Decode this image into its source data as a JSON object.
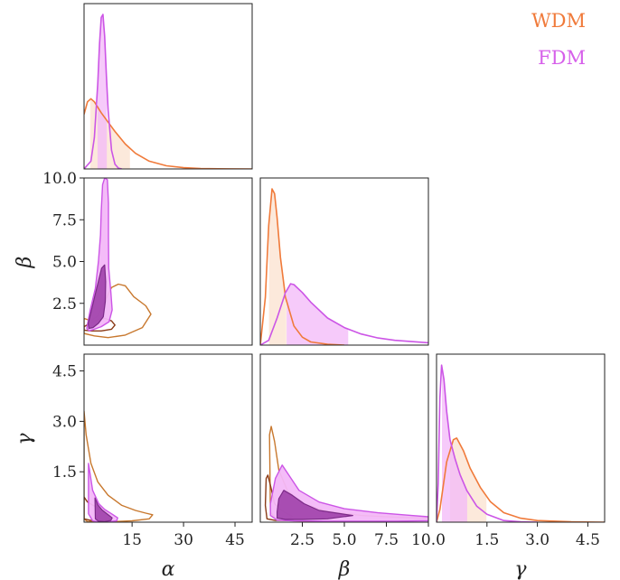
{
  "chart_data": {
    "type": "corner",
    "parameters": [
      "α",
      "β",
      "γ"
    ],
    "legend": [
      {
        "name": "WDM",
        "color": "#f07a3a",
        "position": "top-right"
      },
      {
        "name": "FDM",
        "color": "#d660ea",
        "position": "top-right"
      }
    ],
    "colors": {
      "wdm_line": "#f07a3a",
      "wdm_fill": "#fbe2cf",
      "fdm_line": "#cc55e6",
      "fdm_fill": "#f3b8f8",
      "fdm_dark": "#9a3aa6",
      "wdm_contour_outer": "#c8782e",
      "wdm_contour_inner": "#8a3a16"
    },
    "axes": {
      "alpha": {
        "label": "α",
        "range": [
          1,
          50
        ],
        "ticks": [
          15,
          30,
          45
        ],
        "tick_labels": [
          "15",
          "30",
          "45"
        ]
      },
      "beta": {
        "label": "β",
        "range": [
          0,
          10
        ],
        "ticks": [
          2.5,
          5.0,
          7.5,
          10.0
        ],
        "tick_labels": [
          "2.5",
          "5.0",
          "7.5",
          "10.0"
        ]
      },
      "gamma": {
        "label": "γ",
        "range": [
          0,
          5
        ],
        "ticks": [
          1.5,
          3.0,
          4.5
        ],
        "tick_labels": [
          "1.5",
          "3.0",
          "4.5"
        ]
      }
    },
    "marginals": {
      "alpha": {
        "WDM": {
          "x": [
            1,
            2,
            3,
            4,
            6,
            8,
            10,
            13,
            16,
            20,
            25,
            30,
            35,
            40,
            50
          ],
          "density": [
            0.35,
            0.43,
            0.45,
            0.43,
            0.36,
            0.3,
            0.24,
            0.16,
            0.1,
            0.05,
            0.02,
            0.008,
            0.003,
            0.001,
            0.0
          ]
        },
        "FDM": {
          "x": [
            1,
            3,
            4,
            5,
            5.5,
            6,
            6.5,
            7,
            7.5,
            8,
            9,
            10,
            11,
            12
          ],
          "density": [
            0.0,
            0.05,
            0.2,
            0.55,
            0.8,
            0.97,
            0.99,
            0.85,
            0.6,
            0.38,
            0.12,
            0.03,
            0.005,
            0.0
          ]
        }
      },
      "beta": {
        "WDM": {
          "x": [
            0,
            0.3,
            0.5,
            0.7,
            0.85,
            1.0,
            1.2,
            1.5,
            2.0,
            2.5,
            3.0,
            4.0,
            5.0
          ],
          "density": [
            0.0,
            0.3,
            0.75,
            0.98,
            0.95,
            0.8,
            0.55,
            0.3,
            0.12,
            0.05,
            0.02,
            0.005,
            0.0
          ]
        },
        "FDM": {
          "x": [
            0,
            0.5,
            1.0,
            1.5,
            1.8,
            2.0,
            2.5,
            3.0,
            4.0,
            5.0,
            6.0,
            7.0,
            8.0,
            10.0
          ],
          "density": [
            0.0,
            0.03,
            0.17,
            0.33,
            0.385,
            0.38,
            0.33,
            0.27,
            0.17,
            0.11,
            0.07,
            0.045,
            0.03,
            0.015
          ]
        }
      },
      "gamma": {
        "WDM": {
          "x": [
            0,
            0.1,
            0.3,
            0.5,
            0.6,
            0.8,
            1.0,
            1.3,
            1.6,
            2.0,
            2.5,
            3.0,
            4.0,
            5.0
          ],
          "density": [
            0.0,
            0.08,
            0.38,
            0.52,
            0.53,
            0.45,
            0.34,
            0.22,
            0.13,
            0.06,
            0.025,
            0.01,
            0.002,
            0.0
          ]
        },
        "FDM": {
          "x": [
            0,
            0.05,
            0.1,
            0.15,
            0.22,
            0.3,
            0.4,
            0.55,
            0.7,
            0.9,
            1.2,
            1.5,
            2.0,
            2.5,
            3.0
          ],
          "density": [
            0.0,
            0.25,
            0.78,
            0.99,
            0.9,
            0.7,
            0.52,
            0.4,
            0.3,
            0.2,
            0.1,
            0.05,
            0.01,
            0.003,
            0.0
          ]
        }
      }
    },
    "contours": {
      "alpha_beta": {
        "WDM_outer": [
          [
            1,
            1.6
          ],
          [
            3,
            1.45
          ],
          [
            5,
            1.75
          ],
          [
            7,
            2.6
          ],
          [
            9,
            3.45
          ],
          [
            11,
            3.65
          ],
          [
            13,
            3.55
          ],
          [
            15.5,
            2.9
          ],
          [
            19,
            2.35
          ],
          [
            20.5,
            1.85
          ],
          [
            18,
            1.05
          ],
          [
            13,
            0.6
          ],
          [
            8,
            0.45
          ],
          [
            4,
            0.55
          ],
          [
            1,
            0.7
          ]
        ],
        "WDM_inner": [
          [
            1,
            1.1
          ],
          [
            4,
            1.45
          ],
          [
            7,
            1.6
          ],
          [
            9,
            1.45
          ],
          [
            10,
            1.2
          ],
          [
            9,
            0.95
          ],
          [
            6,
            0.85
          ],
          [
            3,
            0.85
          ],
          [
            1,
            0.9
          ]
        ],
        "FDM_outer": [
          [
            1.8,
            1.0
          ],
          [
            2.8,
            2.1
          ],
          [
            4.3,
            3.4
          ],
          [
            5.2,
            5.0
          ],
          [
            5.8,
            6.6
          ],
          [
            6.0,
            8.0
          ],
          [
            6.4,
            9.6
          ],
          [
            7.0,
            10.0
          ],
          [
            7.8,
            9.9
          ],
          [
            8.1,
            8.5
          ],
          [
            8.1,
            6.5
          ],
          [
            8.2,
            4.6
          ],
          [
            8.8,
            3.2
          ],
          [
            9.2,
            2.1
          ],
          [
            8.3,
            1.4
          ],
          [
            6.0,
            1.1
          ],
          [
            4.0,
            0.95
          ],
          [
            2.5,
            0.85
          ],
          [
            1.8,
            1.0
          ]
        ],
        "FDM_inner": [
          [
            2.2,
            1.3
          ],
          [
            3.4,
            2.3
          ],
          [
            4.8,
            3.5
          ],
          [
            6.1,
            4.6
          ],
          [
            7.0,
            4.8
          ],
          [
            7.3,
            3.8
          ],
          [
            7.2,
            2.6
          ],
          [
            6.6,
            1.7
          ],
          [
            5.2,
            1.3
          ],
          [
            3.6,
            1.05
          ],
          [
            2.4,
            1.0
          ],
          [
            2.2,
            1.3
          ]
        ]
      },
      "alpha_gamma": {
        "WDM_outer": [
          [
            1,
            3.3
          ],
          [
            1.6,
            2.6
          ],
          [
            3,
            1.75
          ],
          [
            5,
            1.2
          ],
          [
            8,
            0.8
          ],
          [
            12,
            0.5
          ],
          [
            16,
            0.35
          ],
          [
            19,
            0.27
          ],
          [
            21,
            0.22
          ],
          [
            20,
            0.1
          ],
          [
            15,
            0.04
          ],
          [
            10,
            0.02
          ],
          [
            5,
            0.02
          ],
          [
            2,
            0.02
          ],
          [
            1,
            0.1
          ]
        ],
        "WDM_inner": [
          [
            1,
            0.75
          ],
          [
            2,
            0.6
          ],
          [
            4,
            0.48
          ],
          [
            6,
            0.38
          ],
          [
            8,
            0.27
          ],
          [
            9,
            0.12
          ],
          [
            6,
            0.05
          ],
          [
            3,
            0.05
          ],
          [
            1,
            0.1
          ]
        ],
        "FDM_outer": [
          [
            2.3,
            1.75
          ],
          [
            3.5,
            0.95
          ],
          [
            5.3,
            0.55
          ],
          [
            7.0,
            0.38
          ],
          [
            9.0,
            0.25
          ],
          [
            10.8,
            0.13
          ],
          [
            10.5,
            0.04
          ],
          [
            8.0,
            0.01
          ],
          [
            5.0,
            0.01
          ],
          [
            3.5,
            0.04
          ],
          [
            2.3,
            0.25
          ],
          [
            2.3,
            1.75
          ]
        ],
        "FDM_inner": [
          [
            4.2,
            0.72
          ],
          [
            5.0,
            0.52
          ],
          [
            6.3,
            0.36
          ],
          [
            7.8,
            0.24
          ],
          [
            9.2,
            0.13
          ],
          [
            8.8,
            0.05
          ],
          [
            7.0,
            0.02
          ],
          [
            5.2,
            0.03
          ],
          [
            4.3,
            0.1
          ],
          [
            4.2,
            0.72
          ]
        ]
      },
      "beta_gamma": {
        "WDM_outer": [
          [
            0.55,
            2.6
          ],
          [
            0.65,
            2.85
          ],
          [
            0.85,
            2.4
          ],
          [
            1.1,
            1.55
          ],
          [
            1.6,
            0.95
          ],
          [
            2.5,
            0.55
          ],
          [
            4.0,
            0.32
          ],
          [
            6.0,
            0.2
          ],
          [
            8.0,
            0.15
          ],
          [
            10.0,
            0.12
          ],
          [
            10.0,
            0.05
          ],
          [
            8.0,
            0.04
          ],
          [
            6.0,
            0.03
          ],
          [
            3.0,
            0.03
          ],
          [
            1.0,
            0.06
          ],
          [
            0.6,
            0.3
          ],
          [
            0.55,
            2.6
          ]
        ],
        "WDM_inner": [
          [
            0.35,
            1.3
          ],
          [
            0.45,
            1.4
          ],
          [
            0.6,
            1.1
          ],
          [
            0.85,
            0.55
          ],
          [
            1.4,
            0.3
          ],
          [
            1.9,
            0.18
          ],
          [
            1.6,
            0.06
          ],
          [
            0.9,
            0.05
          ],
          [
            0.4,
            0.1
          ],
          [
            0.3,
            0.5
          ],
          [
            0.35,
            1.3
          ]
        ],
        "FDM_outer": [
          [
            0.6,
            0.55
          ],
          [
            0.9,
            1.3
          ],
          [
            1.3,
            1.7
          ],
          [
            1.7,
            1.4
          ],
          [
            2.3,
            0.95
          ],
          [
            3.5,
            0.6
          ],
          [
            5.0,
            0.4
          ],
          [
            7.0,
            0.28
          ],
          [
            9.0,
            0.2
          ],
          [
            10.0,
            0.16
          ],
          [
            10.0,
            0.04
          ],
          [
            8.0,
            0.03
          ],
          [
            6.0,
            0.03
          ],
          [
            4.0,
            0.03
          ],
          [
            2.0,
            0.04
          ],
          [
            1.0,
            0.06
          ],
          [
            0.6,
            0.2
          ],
          [
            0.6,
            0.55
          ]
        ],
        "FDM_inner": [
          [
            1.0,
            0.3
          ],
          [
            1.1,
            0.7
          ],
          [
            1.4,
            0.95
          ],
          [
            1.9,
            0.8
          ],
          [
            2.6,
            0.55
          ],
          [
            3.5,
            0.35
          ],
          [
            5.5,
            0.2
          ],
          [
            4.0,
            0.1
          ],
          [
            2.5,
            0.08
          ],
          [
            1.5,
            0.08
          ],
          [
            1.0,
            0.12
          ],
          [
            1.0,
            0.3
          ]
        ]
      }
    }
  }
}
